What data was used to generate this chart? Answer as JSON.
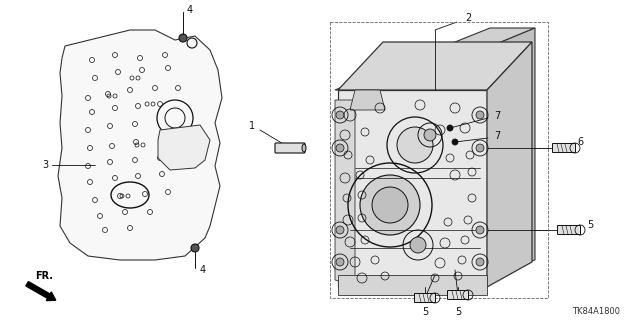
{
  "bg_color": "#ffffff",
  "part_code": "TK84A1800",
  "line_color": "#333333",
  "line_width": 0.7,
  "dark_color": "#111111",
  "gray_color": "#888888",
  "light_gray": "#cccccc"
}
